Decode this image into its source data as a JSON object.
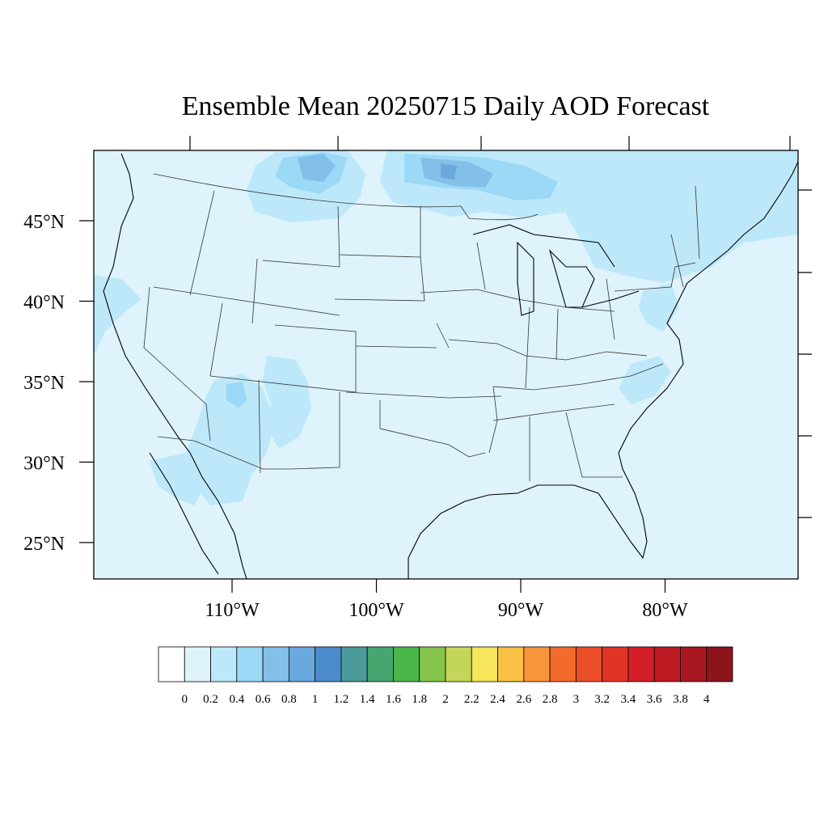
{
  "figure": {
    "title": "Ensemble Mean 20250715 Daily AOD Forecast"
  },
  "map": {
    "background_color": "#def3fc",
    "lat_labels": [
      {
        "label": "45°N",
        "lat": 45
      },
      {
        "label": "40°N",
        "lat": 40
      },
      {
        "label": "35°N",
        "lat": 35
      },
      {
        "label": "30°N",
        "lat": 30
      },
      {
        "label": "25°N",
        "lat": 25
      }
    ],
    "lon_labels": [
      {
        "label": "110°W",
        "lon": -110
      },
      {
        "label": "100°W",
        "lon": -100
      },
      {
        "label": "90°W",
        "lon": -90
      },
      {
        "label": "80°W",
        "lon": -80
      }
    ],
    "aod_regions": [
      {
        "name": "north-dakota-minnesota-smoke",
        "level": 0.4
      },
      {
        "name": "montana-smoke",
        "level": 0.4
      },
      {
        "name": "arizona-plume",
        "level": 0.4
      },
      {
        "name": "new-mexico-plume",
        "level": 0.4
      },
      {
        "name": "northeast-band",
        "level": 0.4
      },
      {
        "name": "california-coast",
        "level": 0.4
      },
      {
        "name": "baja-plume",
        "level": 0.4
      }
    ]
  },
  "colorbar": {
    "colors": [
      "#ffffff",
      "#def3fc",
      "#bde8f9",
      "#9bd9f6",
      "#82c0e9",
      "#6aa9dd",
      "#4b8bcb",
      "#4b9a9a",
      "#47a66f",
      "#4ab54a",
      "#86c44c",
      "#c4d65a",
      "#f7e55c",
      "#f8c146",
      "#f7953a",
      "#f36a2c",
      "#ea4f2a",
      "#e03526",
      "#d21f27",
      "#bd1a24",
      "#a91821",
      "#8e141c"
    ],
    "tick_labels": [
      "0",
      "0.2",
      "0.4",
      "0.6",
      "0.8",
      "1",
      "1.2",
      "1.4",
      "1.6",
      "1.8",
      "2",
      "2.2",
      "2.4",
      "2.6",
      "2.8",
      "3",
      "3.2",
      "3.4",
      "3.6",
      "3.8",
      "4"
    ]
  }
}
